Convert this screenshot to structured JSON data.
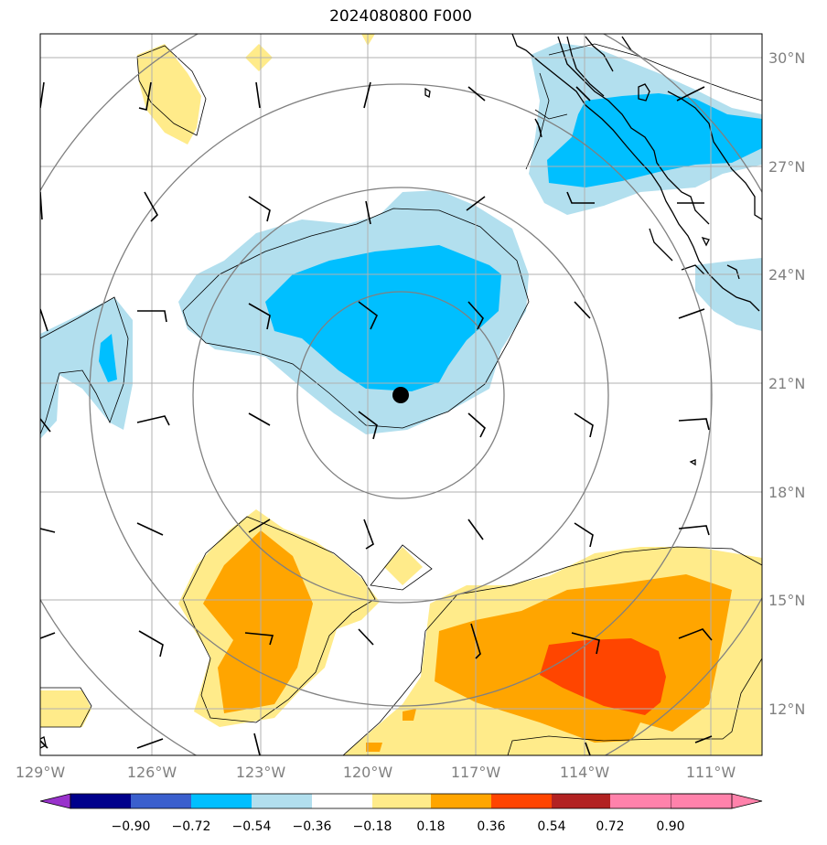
{
  "title": "2024080800 F000",
  "lat_labels": [
    "30°N",
    "27°N",
    "24°N",
    "21°N",
    "18°N",
    "15°N",
    "12°N"
  ],
  "lon_labels": [
    "129°W",
    "126°W",
    "123°W",
    "120°W",
    "117°W",
    "114°W",
    "111°W"
  ],
  "colorbar": {
    "labels": [
      "−0.90",
      "−0.72",
      "−0.54",
      "−0.36",
      "−0.18",
      "0.18",
      "0.36",
      "0.54",
      "0.72",
      "0.90"
    ],
    "colors": [
      "#9932cc",
      "#00008b",
      "#3a5fcd",
      "#00bfff",
      "#b2dfee",
      "#ffffff",
      "#ffeb8a",
      "#ffa500",
      "#ff4500",
      "#b22222",
      "#ff82ab"
    ]
  },
  "fill_colors": {
    "light_blue": "#b2dfee",
    "blue": "#00bfff",
    "light_yellow": "#ffeb8a",
    "orange": "#ffa500",
    "red_orange": "#ff4500"
  },
  "marker_color": "#000000"
}
